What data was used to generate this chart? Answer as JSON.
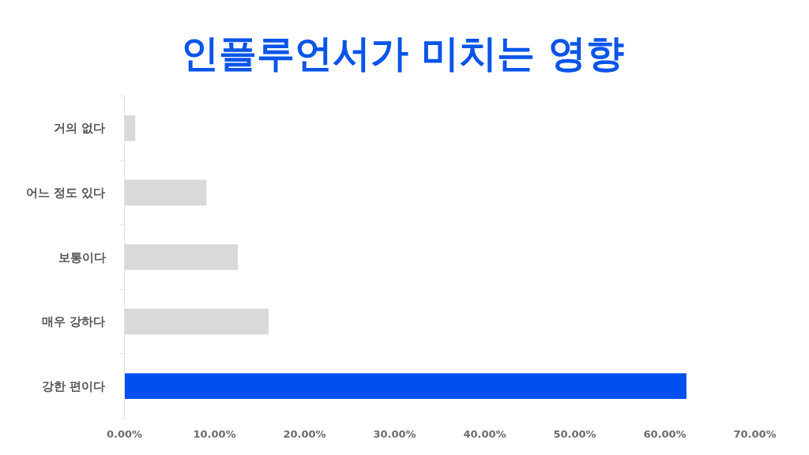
{
  "chart_data": {
    "type": "bar",
    "orientation": "horizontal",
    "title": "인플루언서가 미치는 영향",
    "categories": [
      "거의 없다",
      "어느 정도 있다",
      "보통이다",
      "매우 강하다",
      "강한 편이다"
    ],
    "values": [
      1.2,
      9.1,
      12.6,
      16.0,
      62.4
    ],
    "colors": [
      "#d9d9d9",
      "#d9d9d9",
      "#d9d9d9",
      "#d9d9d9",
      "#0050f0"
    ],
    "xlim": [
      0,
      70
    ],
    "xticks": [
      {
        "value": 0,
        "label": "0.00%"
      },
      {
        "value": 10,
        "label": "10.00%"
      },
      {
        "value": 20,
        "label": "20.00%"
      },
      {
        "value": 30,
        "label": "30.00%"
      },
      {
        "value": 40,
        "label": "40.00%"
      },
      {
        "value": 50,
        "label": "50.00%"
      },
      {
        "value": 60,
        "label": "60.00%"
      },
      {
        "value": 70,
        "label": "70.00%"
      }
    ]
  }
}
